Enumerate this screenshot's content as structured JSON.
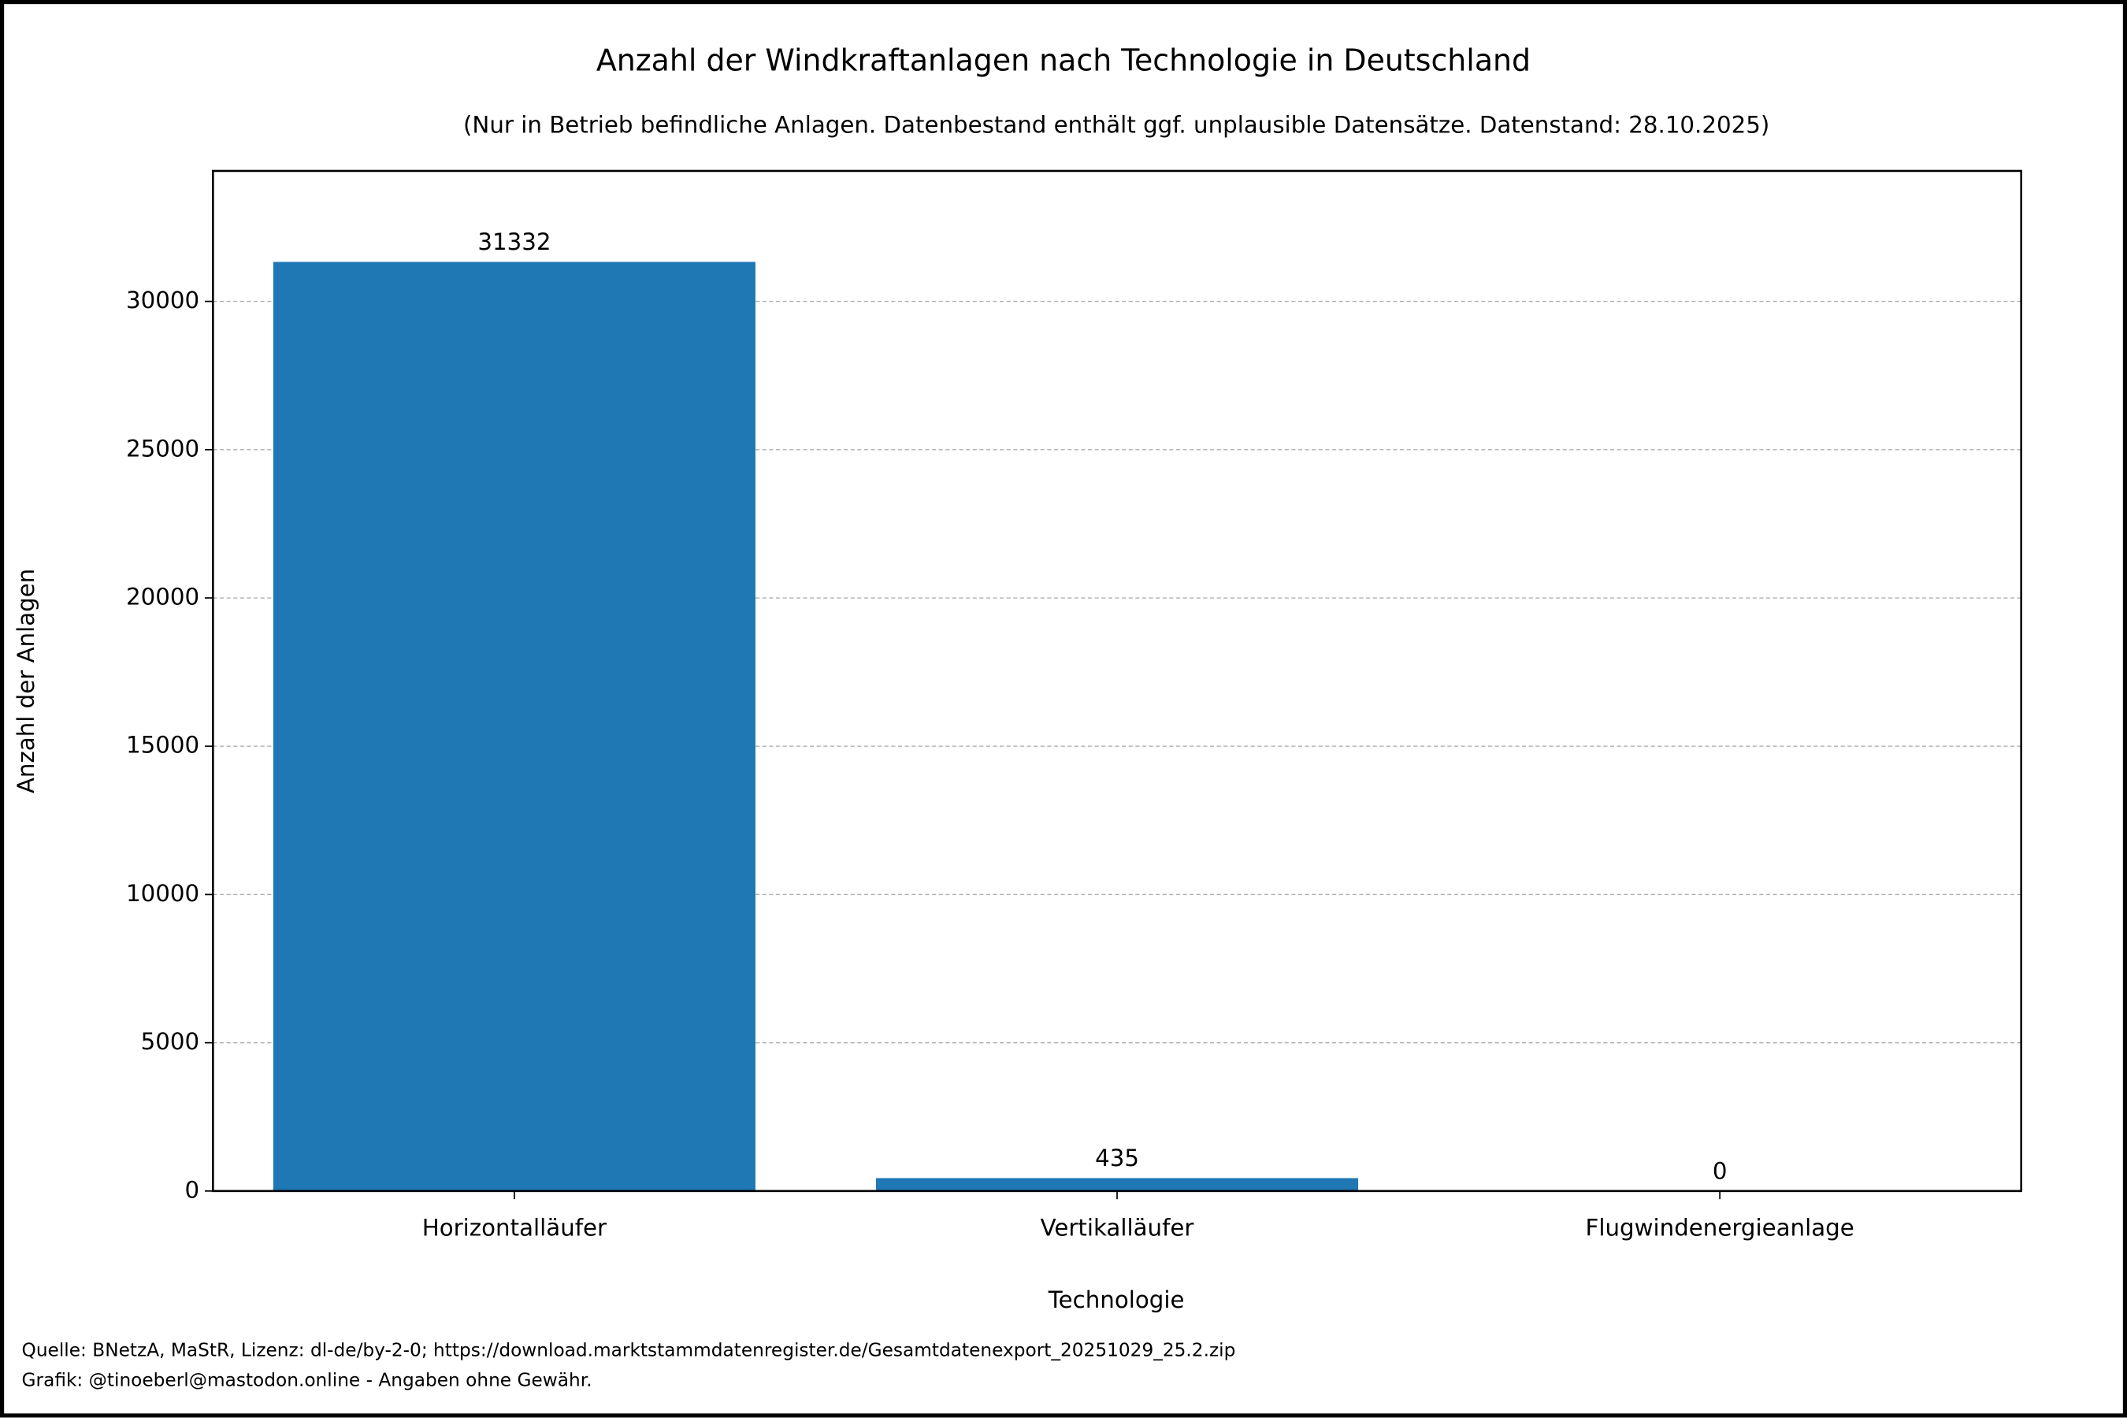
{
  "chart_data": {
    "type": "bar",
    "title": "Anzahl der Windkraftanlagen nach Technologie in Deutschland",
    "subtitle": "(Nur in Betrieb befindliche Anlagen. Datenbestand enthält ggf. unplausible Datensätze. Datenstand: 28.10.2025)",
    "x_label": "Technologie",
    "y_label": "Anzahl der Anlagen",
    "categories": [
      "Horizontalläufer",
      "Vertikalläufer",
      "Flugwindenergieanlage"
    ],
    "values": [
      31332,
      435,
      0
    ],
    "color": "#1f77b4",
    "ylim": [
      0,
      34400
    ],
    "yticks": [
      0,
      5000,
      10000,
      15000,
      20000,
      25000,
      30000
    ],
    "grid": true,
    "footer": [
      "Quelle: BNetzA, MaStR, Lizenz: dl-de/by-2-0; https://download.marktstammdatenregister.de/Gesamtdatenexport_20251029_25.2.zip",
      "Grafik: @tinoeberl@mastodon.online - Angaben ohne Gewähr."
    ]
  }
}
